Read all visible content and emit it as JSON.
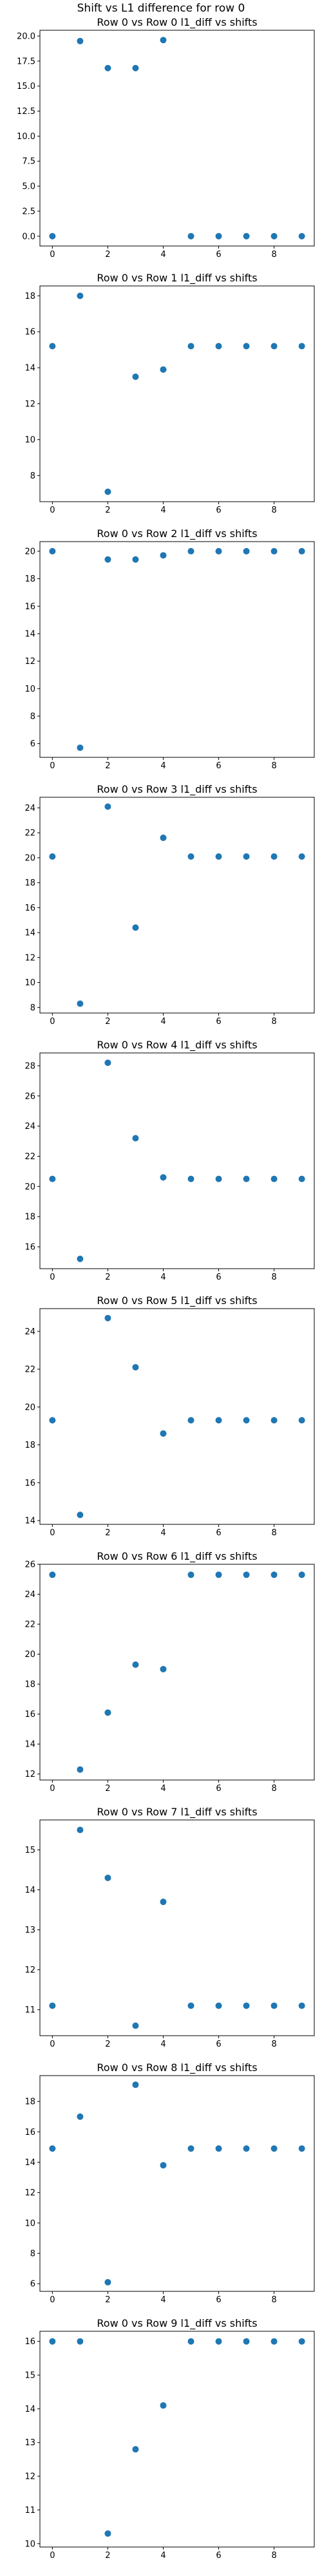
{
  "figure": {
    "title": "Shift vs L1 difference for row 0",
    "marker_color": "#1f77b4"
  },
  "chart_data": [
    {
      "type": "scatter",
      "title": "Row 0 vs Row 0 l1_diff vs shifts",
      "x": [
        0,
        1,
        2,
        3,
        4,
        5,
        6,
        7,
        8,
        9
      ],
      "y": [
        0.0,
        19.5,
        16.8,
        16.8,
        19.6,
        0.0,
        0.0,
        0.0,
        0.0,
        0.0
      ],
      "xlim": [
        -0.45,
        9.45
      ],
      "ylim": [
        -0.98,
        20.58
      ],
      "xticks": [
        0,
        2,
        4,
        6,
        8
      ],
      "yticks": [
        0.0,
        2.5,
        5.0,
        7.5,
        10.0,
        12.5,
        15.0,
        17.5,
        20.0
      ],
      "ytick_labels": [
        "0.0",
        "2.5",
        "5.0",
        "7.5",
        "10.0",
        "12.5",
        "15.0",
        "17.5",
        "20.0"
      ]
    },
    {
      "type": "scatter",
      "title": "Row 0 vs Row 1 l1_diff vs shifts",
      "x": [
        0,
        1,
        2,
        3,
        4,
        5,
        6,
        7,
        8,
        9
      ],
      "y": [
        15.2,
        18.0,
        7.1,
        13.5,
        13.9,
        15.2,
        15.2,
        15.2,
        15.2,
        15.2
      ],
      "xlim": [
        -0.45,
        9.45
      ],
      "ylim": [
        6.55,
        18.55
      ],
      "xticks": [
        0,
        2,
        4,
        6,
        8
      ],
      "yticks": [
        8,
        10,
        12,
        14,
        16,
        18
      ],
      "ytick_labels": [
        "8",
        "10",
        "12",
        "14",
        "16",
        "18"
      ]
    },
    {
      "type": "scatter",
      "title": "Row 0 vs Row 2 l1_diff vs shifts",
      "x": [
        0,
        1,
        2,
        3,
        4,
        5,
        6,
        7,
        8,
        9
      ],
      "y": [
        20.0,
        5.7,
        19.4,
        19.4,
        19.7,
        20.0,
        20.0,
        20.0,
        20.0,
        20.0
      ],
      "xlim": [
        -0.45,
        9.45
      ],
      "ylim": [
        5.0,
        20.7
      ],
      "xticks": [
        0,
        2,
        4,
        6,
        8
      ],
      "yticks": [
        6,
        8,
        10,
        12,
        14,
        16,
        18,
        20
      ],
      "ytick_labels": [
        "6",
        "8",
        "10",
        "12",
        "14",
        "16",
        "18",
        "20"
      ]
    },
    {
      "type": "scatter",
      "title": "Row 0 vs Row 3 l1_diff vs shifts",
      "x": [
        0,
        1,
        2,
        3,
        4,
        5,
        6,
        7,
        8,
        9
      ],
      "y": [
        20.1,
        8.3,
        24.1,
        14.4,
        21.6,
        20.1,
        20.1,
        20.1,
        20.1,
        20.1
      ],
      "xlim": [
        -0.45,
        9.45
      ],
      "ylim": [
        7.55,
        24.85
      ],
      "xticks": [
        0,
        2,
        4,
        6,
        8
      ],
      "yticks": [
        8,
        10,
        12,
        14,
        16,
        18,
        20,
        22,
        24
      ],
      "ytick_labels": [
        "8",
        "10",
        "12",
        "14",
        "16",
        "18",
        "20",
        "22",
        "24"
      ]
    },
    {
      "type": "scatter",
      "title": "Row 0 vs Row 4 l1_diff vs shifts",
      "x": [
        0,
        1,
        2,
        3,
        4,
        5,
        6,
        7,
        8,
        9
      ],
      "y": [
        20.5,
        15.2,
        28.2,
        23.2,
        20.6,
        20.5,
        20.5,
        20.5,
        20.5,
        20.5
      ],
      "xlim": [
        -0.45,
        9.45
      ],
      "ylim": [
        14.55,
        28.85
      ],
      "xticks": [
        0,
        2,
        4,
        6,
        8
      ],
      "yticks": [
        16,
        18,
        20,
        22,
        24,
        26,
        28
      ],
      "ytick_labels": [
        "16",
        "18",
        "20",
        "22",
        "24",
        "26",
        "28"
      ]
    },
    {
      "type": "scatter",
      "title": "Row 0 vs Row 5 l1_diff vs shifts",
      "x": [
        0,
        1,
        2,
        3,
        4,
        5,
        6,
        7,
        8,
        9
      ],
      "y": [
        19.3,
        14.3,
        24.7,
        22.1,
        18.6,
        19.3,
        19.3,
        19.3,
        19.3,
        19.3
      ],
      "xlim": [
        -0.45,
        9.45
      ],
      "ylim": [
        13.8,
        25.2
      ],
      "xticks": [
        0,
        2,
        4,
        6,
        8
      ],
      "yticks": [
        14,
        16,
        18,
        20,
        22,
        24
      ],
      "ytick_labels": [
        "14",
        "16",
        "18",
        "20",
        "22",
        "24"
      ]
    },
    {
      "type": "scatter",
      "title": "Row 0 vs Row 6 l1_diff vs shifts",
      "x": [
        0,
        1,
        2,
        3,
        4,
        5,
        6,
        7,
        8,
        9
      ],
      "y": [
        25.3,
        12.3,
        16.1,
        19.3,
        19.0,
        25.3,
        25.3,
        25.3,
        25.3,
        25.3
      ],
      "xlim": [
        -0.45,
        9.45
      ],
      "ylim": [
        11.6,
        26.0
      ],
      "xticks": [
        0,
        2,
        4,
        6,
        8
      ],
      "yticks": [
        12,
        14,
        16,
        18,
        20,
        22,
        24,
        26
      ],
      "ytick_labels": [
        "12",
        "14",
        "16",
        "18",
        "20",
        "22",
        "24",
        "26"
      ]
    },
    {
      "type": "scatter",
      "title": "Row 0 vs Row 7 l1_diff vs shifts",
      "x": [
        0,
        1,
        2,
        3,
        4,
        5,
        6,
        7,
        8,
        9
      ],
      "y": [
        11.1,
        15.5,
        14.3,
        10.6,
        13.7,
        11.1,
        11.1,
        11.1,
        11.1,
        11.1
      ],
      "xlim": [
        -0.45,
        9.45
      ],
      "ylim": [
        10.35,
        15.75
      ],
      "xticks": [
        0,
        2,
        4,
        6,
        8
      ],
      "yticks": [
        11,
        12,
        13,
        14,
        15
      ],
      "ytick_labels": [
        "11",
        "12",
        "13",
        "14",
        "15"
      ]
    },
    {
      "type": "scatter",
      "title": "Row 0 vs Row 8 l1_diff vs shifts",
      "x": [
        0,
        1,
        2,
        3,
        4,
        5,
        6,
        7,
        8,
        9
      ],
      "y": [
        14.9,
        17.0,
        6.1,
        19.1,
        13.8,
        14.9,
        14.9,
        14.9,
        14.9,
        14.9
      ],
      "xlim": [
        -0.45,
        9.45
      ],
      "ylim": [
        5.5,
        19.7
      ],
      "xticks": [
        0,
        2,
        4,
        6,
        8
      ],
      "yticks": [
        6,
        8,
        10,
        12,
        14,
        16,
        18
      ],
      "ytick_labels": [
        "6",
        "8",
        "10",
        "12",
        "14",
        "16",
        "18"
      ]
    },
    {
      "type": "scatter",
      "title": "Row 0 vs Row 9 l1_diff vs shifts",
      "x": [
        0,
        1,
        2,
        3,
        4,
        5,
        6,
        7,
        8,
        9
      ],
      "y": [
        16.0,
        16.0,
        10.3,
        12.8,
        14.1,
        16.0,
        16.0,
        16.0,
        16.0,
        16.0
      ],
      "xlim": [
        -0.45,
        9.45
      ],
      "ylim": [
        9.9,
        16.3
      ],
      "xticks": [
        0,
        2,
        4,
        6,
        8
      ],
      "yticks": [
        10,
        11,
        12,
        13,
        14,
        15,
        16
      ],
      "ytick_labels": [
        "10",
        "11",
        "12",
        "13",
        "14",
        "15",
        "16"
      ]
    }
  ]
}
